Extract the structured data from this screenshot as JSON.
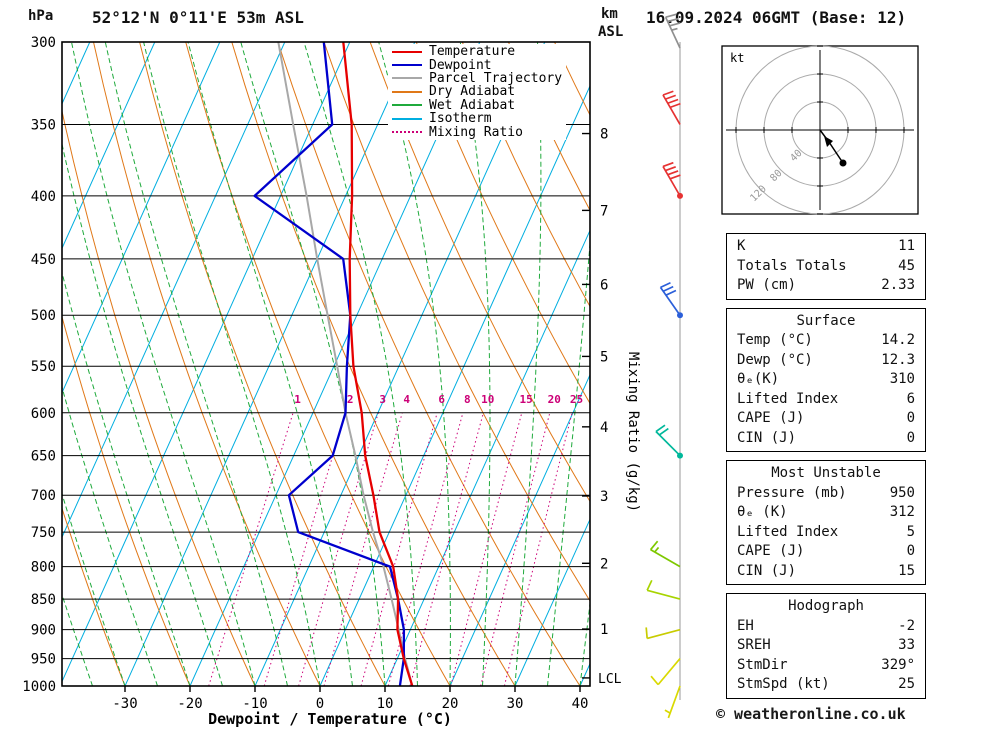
{
  "header": {
    "pressure_unit": "hPa",
    "title": "52°12'N 0°11'E 53m ASL",
    "alt_unit": "km",
    "alt_ref": "ASL",
    "datetime": "16.09.2024 06GMT (Base: 12)"
  },
  "legend": [
    {
      "label": "Temperature",
      "color": "#e60000",
      "style": "solid"
    },
    {
      "label": "Dewpoint",
      "color": "#0000cd",
      "style": "solid"
    },
    {
      "label": "Parcel Trajectory",
      "color": "#a8a8a8",
      "style": "solid"
    },
    {
      "label": "Dry Adiabat",
      "color": "#e07818",
      "style": "solid"
    },
    {
      "label": "Wet Adiabat",
      "color": "#1faa3c",
      "style": "solid"
    },
    {
      "label": "Isotherm",
      "color": "#00aee0",
      "style": "solid"
    },
    {
      "label": "Mixing Ratio",
      "color": "#cc0077",
      "style": "dotted"
    }
  ],
  "axes": {
    "xlabel": "Dewpoint / Temperature (°C)",
    "x_ticks": [
      -30,
      -20,
      -10,
      0,
      10,
      20,
      30,
      40
    ],
    "pressure_ticks": [
      300,
      350,
      400,
      450,
      500,
      550,
      600,
      650,
      700,
      750,
      800,
      850,
      900,
      950,
      1000
    ],
    "km_ticks": [
      1,
      2,
      3,
      4,
      5,
      6,
      7,
      8
    ],
    "lcl_label": "LCL",
    "mixing_label": "Mixing Ratio (g/kg)",
    "mixing_values": [
      1,
      2,
      3,
      4,
      6,
      8,
      10,
      15,
      20,
      25
    ]
  },
  "chart_data": {
    "type": "line",
    "title": "52°12'N 0°11'E 53m ASL",
    "x_axis": {
      "label": "Dewpoint / Temperature (°C)",
      "range": [
        -40,
        40
      ],
      "ticks": [
        -30,
        -20,
        -10,
        0,
        10,
        20,
        30,
        40
      ]
    },
    "y_axis": {
      "label": "hPa",
      "scale": "log",
      "range": [
        1000,
        300
      ]
    },
    "pressure_hpa": [
      300,
      350,
      400,
      450,
      500,
      550,
      600,
      650,
      700,
      750,
      800,
      850,
      900,
      950,
      1000
    ],
    "series": [
      {
        "name": "Temperature",
        "color": "#e60000",
        "values_c": [
          -41,
          -34,
          -29,
          -25,
          -21,
          -17,
          -12.5,
          -9,
          -5,
          -1.5,
          3,
          6,
          8,
          11,
          14.2
        ]
      },
      {
        "name": "Dewpoint",
        "color": "#0000cd",
        "values_c": [
          -44,
          -37,
          -44,
          -26,
          -21,
          -18,
          -15,
          -14,
          -18,
          -14,
          2.5,
          6,
          9,
          11,
          12.3
        ]
      },
      {
        "name": "Parcel Trajectory",
        "color": "#a8a8a8",
        "values_c": [
          -51,
          -43,
          -36,
          -30,
          -24.5,
          -19.5,
          -15,
          -10.5,
          -6.5,
          -2.5,
          1.5,
          5,
          8.2,
          11.2,
          14.2
        ]
      }
    ],
    "lcl_pressure_hpa": 985
  },
  "wind_profile": [
    {
      "pressure": 300,
      "direction": 335,
      "speed_kt": 35,
      "color": "#909090",
      "dot": false
    },
    {
      "pressure": 350,
      "direction": 330,
      "speed_kt": 40,
      "color": "#e63232",
      "dot": false
    },
    {
      "pressure": 400,
      "direction": 330,
      "speed_kt": 40,
      "color": "#e63232",
      "dot": true
    },
    {
      "pressure": 500,
      "direction": 325,
      "speed_kt": 30,
      "color": "#2b5fd9",
      "dot": true
    },
    {
      "pressure": 650,
      "direction": 315,
      "speed_kt": 20,
      "color": "#00b89b",
      "dot": true
    },
    {
      "pressure": 800,
      "direction": 300,
      "speed_kt": 15,
      "color": "#7ec800",
      "dot": false
    },
    {
      "pressure": 850,
      "direction": 285,
      "speed_kt": 10,
      "color": "#a8d400",
      "dot": false
    },
    {
      "pressure": 900,
      "direction": 255,
      "speed_kt": 10,
      "color": "#c8cc00",
      "dot": false
    },
    {
      "pressure": 950,
      "direction": 220,
      "speed_kt": 10,
      "color": "#d9d900",
      "dot": false
    },
    {
      "pressure": 1000,
      "direction": 200,
      "speed_kt": 5,
      "color": "#d9d900",
      "dot": false
    }
  ],
  "hodograph": {
    "unit_label": "kt",
    "ring_labels": [
      "40",
      "80",
      "120"
    ],
    "rings_kt": [
      40,
      80,
      120
    ]
  },
  "tables": [
    {
      "title": "",
      "rows": [
        [
          "K",
          "11"
        ],
        [
          "Totals Totals",
          "45"
        ],
        [
          "PW (cm)",
          "2.33"
        ]
      ]
    },
    {
      "title": "Surface",
      "rows": [
        [
          "Temp (°C)",
          "14.2"
        ],
        [
          "Dewp (°C)",
          "12.3"
        ],
        [
          "θₑ(K)",
          "310"
        ],
        [
          "Lifted Index",
          "6"
        ],
        [
          "CAPE (J)",
          "0"
        ],
        [
          "CIN (J)",
          "0"
        ]
      ]
    },
    {
      "title": "Most Unstable",
      "rows": [
        [
          "Pressure (mb)",
          "950"
        ],
        [
          "θₑ (K)",
          "312"
        ],
        [
          "Lifted Index",
          "5"
        ],
        [
          "CAPE (J)",
          "0"
        ],
        [
          "CIN (J)",
          "15"
        ]
      ]
    },
    {
      "title": "Hodograph",
      "rows": [
        [
          "EH",
          "-2"
        ],
        [
          "SREH",
          "33"
        ],
        [
          "StmDir",
          "329°"
        ],
        [
          "StmSpd (kt)",
          "25"
        ]
      ]
    }
  ],
  "footer": {
    "copyright": "© weatheronline.co.uk"
  }
}
